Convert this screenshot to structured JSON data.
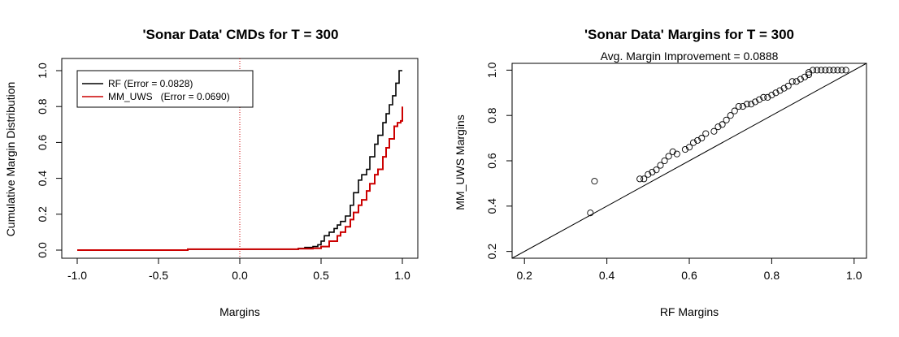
{
  "chart_data": [
    {
      "type": "line",
      "title": "'Sonar Data' CMDs for T = 300",
      "xlabel": "Margins",
      "ylabel": "Cumulative Margin Distribution",
      "xlim": [
        -1.0,
        1.0
      ],
      "ylim": [
        0.0,
        1.0
      ],
      "x_ticks": [
        "-1.0",
        "-0.5",
        "0.0",
        "0.5",
        "1.0"
      ],
      "y_ticks": [
        "0.0",
        "0.2",
        "0.4",
        "0.6",
        "0.8",
        "1.0"
      ],
      "legend_position": "top-left",
      "reference_line": {
        "x": 0.0,
        "style": "dotted",
        "color": "#cc0000"
      },
      "series": [
        {
          "name": "RF (Error = 0.0828)",
          "color": "#000000",
          "x": [
            -1.0,
            -0.32,
            0.36,
            0.4,
            0.45,
            0.48,
            0.5,
            0.52,
            0.55,
            0.58,
            0.6,
            0.62,
            0.65,
            0.68,
            0.7,
            0.73,
            0.75,
            0.78,
            0.8,
            0.83,
            0.85,
            0.88,
            0.9,
            0.92,
            0.94,
            0.96,
            0.98,
            1.0
          ],
          "y": [
            0.0,
            0.005,
            0.01,
            0.015,
            0.02,
            0.03,
            0.05,
            0.08,
            0.1,
            0.12,
            0.14,
            0.16,
            0.19,
            0.25,
            0.32,
            0.39,
            0.42,
            0.45,
            0.52,
            0.59,
            0.64,
            0.71,
            0.76,
            0.81,
            0.86,
            0.93,
            1.0,
            1.0
          ]
        },
        {
          "name": "MM_UWS   (Error = 0.0690)",
          "color": "#cc0000",
          "x": [
            -1.0,
            -0.32,
            0.36,
            0.45,
            0.5,
            0.55,
            0.6,
            0.62,
            0.65,
            0.68,
            0.7,
            0.73,
            0.75,
            0.78,
            0.8,
            0.83,
            0.85,
            0.88,
            0.9,
            0.92,
            0.95,
            0.97,
            0.99,
            1.0,
            1.0
          ],
          "y": [
            0.0,
            0.005,
            0.008,
            0.01,
            0.02,
            0.05,
            0.08,
            0.1,
            0.13,
            0.17,
            0.21,
            0.25,
            0.28,
            0.33,
            0.37,
            0.42,
            0.45,
            0.52,
            0.57,
            0.62,
            0.69,
            0.71,
            0.72,
            0.73,
            0.8
          ]
        }
      ]
    },
    {
      "type": "scatter",
      "title": "'Sonar Data' Margins for T = 300",
      "subtitle": "Avg. Margin Improvement = 0.0888",
      "xlabel": "RF Margins",
      "ylabel": "MM_UWS Margins",
      "xlim": [
        0.17,
        1.03
      ],
      "ylim": [
        0.17,
        1.03
      ],
      "x_ticks": [
        "0.2",
        "0.4",
        "0.6",
        "0.8",
        "1.0"
      ],
      "y_ticks": [
        "0.2",
        "0.4",
        "0.6",
        "0.8",
        "1.0"
      ],
      "reference_line": {
        "type": "y=x"
      },
      "points": {
        "x": [
          0.36,
          0.37,
          0.48,
          0.49,
          0.5,
          0.51,
          0.52,
          0.53,
          0.54,
          0.55,
          0.56,
          0.57,
          0.59,
          0.6,
          0.61,
          0.62,
          0.63,
          0.64,
          0.66,
          0.67,
          0.68,
          0.69,
          0.7,
          0.71,
          0.72,
          0.73,
          0.74,
          0.75,
          0.76,
          0.77,
          0.78,
          0.79,
          0.8,
          0.81,
          0.82,
          0.83,
          0.84,
          0.85,
          0.86,
          0.87,
          0.88,
          0.89,
          0.89,
          0.9,
          0.91,
          0.92,
          0.93,
          0.94,
          0.95,
          0.96,
          0.97,
          0.98
        ],
        "y": [
          0.37,
          0.51,
          0.52,
          0.52,
          0.54,
          0.55,
          0.56,
          0.58,
          0.6,
          0.62,
          0.64,
          0.63,
          0.65,
          0.66,
          0.68,
          0.69,
          0.7,
          0.72,
          0.73,
          0.75,
          0.76,
          0.78,
          0.8,
          0.82,
          0.84,
          0.84,
          0.85,
          0.85,
          0.86,
          0.87,
          0.88,
          0.88,
          0.89,
          0.9,
          0.91,
          0.92,
          0.93,
          0.95,
          0.95,
          0.96,
          0.97,
          0.98,
          0.99,
          1.0,
          1.0,
          1.0,
          1.0,
          1.0,
          1.0,
          1.0,
          1.0,
          1.0
        ]
      }
    }
  ]
}
